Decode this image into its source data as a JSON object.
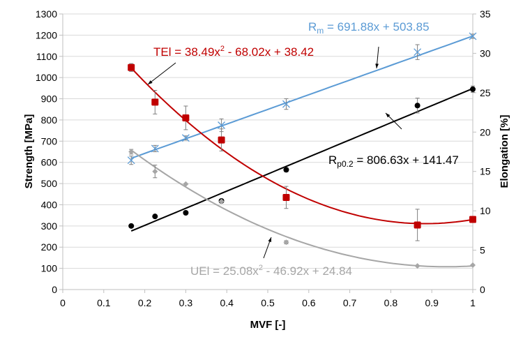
{
  "chart_data": {
    "type": "scatter",
    "xlabel": "MVF [-]",
    "ylabel": "Strength [MPa]",
    "y2label": "Elongation [%]",
    "xlim": [
      0,
      1
    ],
    "ylim": [
      0,
      1300
    ],
    "y2lim": [
      0,
      35
    ],
    "xticks": [
      "0",
      "0.1",
      "0.2",
      "0.3",
      "0.4",
      "0.5",
      "0.6",
      "0.7",
      "0.8",
      "0.9",
      "1"
    ],
    "yticks": [
      "0",
      "100",
      "200",
      "300",
      "400",
      "500",
      "600",
      "700",
      "800",
      "900",
      "1000",
      "1100",
      "1200",
      "1300"
    ],
    "y2ticks": [
      "0",
      "5",
      "10",
      "15",
      "20",
      "25",
      "30",
      "35"
    ],
    "grid": "horizontal",
    "x": [
      0.167,
      0.225,
      0.3,
      0.387,
      0.545,
      0.865,
      1.0
    ],
    "series": [
      {
        "key": "rm",
        "axis": "left",
        "marker": "x",
        "color": "#5b9bd5",
        "values": [
          610,
          665,
          715,
          775,
          875,
          1120,
          1195
        ],
        "err": [
          20,
          15,
          10,
          30,
          25,
          35,
          10
        ],
        "fit": {
          "kind": "linear",
          "coef": [
            691.88,
            503.85
          ]
        },
        "label": {
          "main": "R",
          "sub": "m",
          "rest": " = 691.88x + 503.85"
        }
      },
      {
        "key": "rp",
        "axis": "left",
        "marker": "circle",
        "color": "#000000",
        "values": [
          300,
          345,
          362,
          418,
          565,
          868,
          945
        ],
        "err": [
          0,
          0,
          0,
          8,
          10,
          35,
          15
        ],
        "fit": {
          "kind": "linear",
          "coef": [
            806.63,
            141.47
          ]
        },
        "label": {
          "main": "R",
          "sub": "p0.2",
          "rest": " = 806.63x + 141.47"
        }
      },
      {
        "key": "tel",
        "axis": "right",
        "marker": "square",
        "color": "#c00000",
        "values": [
          28.2,
          23.8,
          21.8,
          19.0,
          11.7,
          8.2,
          8.9
        ],
        "err": [
          0.5,
          1.5,
          1.5,
          1.4,
          1.4,
          2.0,
          0.2
        ],
        "fit": {
          "kind": "quadratic",
          "coef": [
            38.49,
            -68.02,
            38.42
          ]
        },
        "label": {
          "main": "TEl = 38.49x",
          "sup": "2",
          "rest": " - 68.02x + 38.42"
        }
      },
      {
        "key": "uel",
        "axis": "right",
        "marker": "diamond",
        "color": "#a6a6a6",
        "values": [
          17.5,
          15.0,
          13.4,
          11.2,
          6.0,
          3.0,
          3.1
        ],
        "err": [
          0.3,
          0.8,
          0,
          0,
          0.2,
          0,
          0
        ],
        "fit": {
          "kind": "quadratic",
          "coef": [
            25.08,
            -46.92,
            24.84
          ]
        },
        "label": {
          "main": "UEl = 25.08x",
          "sup": "2",
          "rest": " - 46.92x + 24.84"
        }
      }
    ]
  }
}
